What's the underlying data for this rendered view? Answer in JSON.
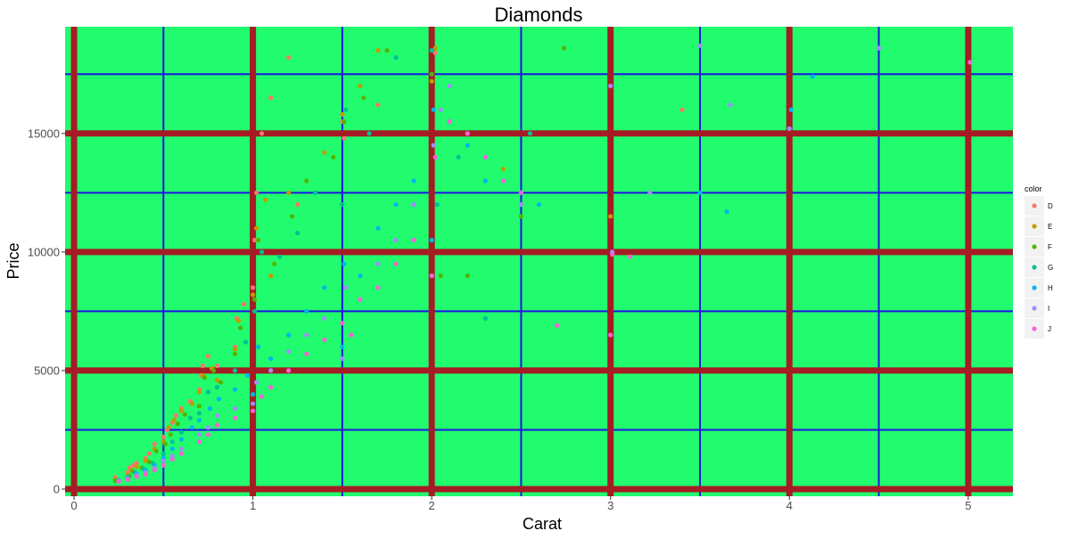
{
  "chart_data": {
    "type": "scatter",
    "title": "Diamonds",
    "xlabel": "Carat",
    "ylabel": "Price",
    "xlim": [
      -0.05,
      5.25
    ],
    "ylim": [
      -300,
      19500
    ],
    "x_ticks": [
      0,
      1,
      2,
      3,
      4,
      5
    ],
    "x_tick_labels": [
      "0",
      "1",
      "2",
      "3",
      "4",
      "5"
    ],
    "y_ticks": [
      0,
      5000,
      10000,
      15000
    ],
    "y_tick_labels": [
      "0",
      "5000",
      "10000",
      "15000"
    ],
    "x_minor_ticks": [
      0.5,
      1.5,
      2.5,
      3.5,
      4.5
    ],
    "y_minor_ticks": [
      2500,
      7500,
      12500,
      17500
    ],
    "grid": true,
    "panel_background": "#20FC6E",
    "major_grid_color": "#A51C24",
    "minor_grid_color": "#1E14E6",
    "legend": {
      "title": "color",
      "position": "right",
      "entries": [
        "D",
        "E",
        "F",
        "G",
        "H",
        "I",
        "J"
      ]
    },
    "series": [
      {
        "name": "D",
        "color": "#F8766D",
        "x": [
          0.23,
          0.3,
          0.31,
          0.33,
          0.35,
          0.4,
          0.42,
          0.45,
          0.5,
          0.52,
          0.55,
          0.57,
          0.6,
          0.65,
          0.7,
          0.71,
          0.72,
          0.75,
          0.8,
          0.9,
          0.91,
          0.95,
          1.0,
          1.01,
          1.02,
          1.05,
          1.1,
          1.2,
          1.25,
          1.5,
          1.51,
          1.7,
          2.0,
          2.02,
          3.4
        ],
        "y": [
          500,
          700,
          900,
          1000,
          1100,
          1300,
          1500,
          1900,
          2200,
          2500,
          2800,
          3100,
          3400,
          3700,
          4200,
          4800,
          5200,
          5600,
          5200,
          6000,
          7200,
          7800,
          8500,
          10500,
          12500,
          15000,
          16500,
          18200,
          12000,
          15500,
          14800,
          16200,
          17500,
          18400,
          16000
        ]
      },
      {
        "name": "E",
        "color": "#C49A00",
        "x": [
          0.23,
          0.3,
          0.32,
          0.35,
          0.4,
          0.45,
          0.5,
          0.53,
          0.56,
          0.6,
          0.66,
          0.7,
          0.72,
          0.77,
          0.8,
          0.9,
          0.92,
          1.0,
          1.02,
          1.07,
          1.1,
          1.2,
          1.4,
          1.5,
          1.6,
          1.7,
          2.0,
          2.02,
          2.4,
          3.0
        ],
        "y": [
          400,
          600,
          800,
          950,
          1200,
          1700,
          2000,
          2600,
          2900,
          3300,
          3600,
          4100,
          4800,
          5100,
          4600,
          5900,
          7100,
          8200,
          11000,
          12200,
          9000,
          12500,
          14200,
          15800,
          17000,
          18500,
          17200,
          18600,
          13500,
          11500
        ]
      },
      {
        "name": "F",
        "color": "#53B400",
        "x": [
          0.23,
          0.31,
          0.33,
          0.38,
          0.42,
          0.46,
          0.51,
          0.54,
          0.58,
          0.62,
          0.7,
          0.73,
          0.78,
          0.82,
          0.9,
          0.93,
          1.01,
          1.03,
          1.12,
          1.22,
          1.3,
          1.45,
          1.51,
          1.62,
          1.75,
          2.0,
          2.05,
          2.2,
          2.5,
          2.74
        ],
        "y": [
          350,
          550,
          750,
          900,
          1150,
          1600,
          1900,
          2300,
          2750,
          3150,
          3500,
          4700,
          5000,
          4500,
          5700,
          6800,
          8000,
          10500,
          9500,
          11500,
          13000,
          14000,
          15500,
          16500,
          18500,
          17500,
          9000,
          9000,
          11500,
          18600
        ]
      },
      {
        "name": "G",
        "color": "#00C094",
        "x": [
          0.25,
          0.3,
          0.34,
          0.39,
          0.44,
          0.5,
          0.55,
          0.6,
          0.65,
          0.7,
          0.75,
          0.8,
          0.9,
          0.96,
          1.01,
          1.05,
          1.15,
          1.25,
          1.35,
          1.5,
          1.52,
          1.65,
          1.8,
          2.0,
          2.03,
          2.15,
          2.3,
          2.55
        ],
        "y": [
          380,
          520,
          700,
          850,
          1100,
          1500,
          2000,
          2400,
          3000,
          3200,
          4100,
          4300,
          5000,
          6200,
          7500,
          10000,
          9800,
          10800,
          12500,
          12000,
          16000,
          15000,
          18200,
          18500,
          12000,
          14000,
          7200,
          15000
        ]
      },
      {
        "name": "H",
        "color": "#00B6EB",
        "x": [
          0.25,
          0.3,
          0.35,
          0.4,
          0.45,
          0.5,
          0.55,
          0.6,
          0.66,
          0.7,
          0.76,
          0.81,
          0.9,
          0.97,
          1.0,
          1.03,
          1.1,
          1.2,
          1.3,
          1.4,
          1.5,
          1.51,
          1.6,
          1.7,
          1.8,
          1.9,
          2.0,
          2.01,
          2.1,
          2.2,
          2.3,
          2.5,
          2.6,
          3.5,
          3.65,
          4.01,
          4.13
        ],
        "y": [
          360,
          480,
          650,
          800,
          1000,
          1300,
          1700,
          2100,
          2600,
          2900,
          3400,
          3800,
          4200,
          4800,
          4000,
          6000,
          5500,
          6500,
          7500,
          8500,
          6000,
          9500,
          9000,
          11000,
          12000,
          13000,
          10500,
          16000,
          15500,
          14500,
          13000,
          12500,
          12000,
          12500,
          11700,
          16000,
          17400
        ]
      },
      {
        "name": "I",
        "color": "#A58AFF",
        "x": [
          0.25,
          0.3,
          0.35,
          0.4,
          0.45,
          0.5,
          0.55,
          0.6,
          0.7,
          0.75,
          0.8,
          0.9,
          1.0,
          1.02,
          1.1,
          1.2,
          1.3,
          1.4,
          1.5,
          1.52,
          1.6,
          1.7,
          1.8,
          1.9,
          2.0,
          2.01,
          2.05,
          2.1,
          2.2,
          2.3,
          2.4,
          2.5,
          3.0,
          3.01,
          3.22,
          3.5,
          3.67,
          4.0,
          4.5
        ],
        "y": [
          340,
          430,
          580,
          700,
          900,
          1200,
          1400,
          1700,
          2300,
          2600,
          3100,
          3400,
          3600,
          4500,
          5000,
          5800,
          6500,
          7200,
          5500,
          8500,
          8000,
          9500,
          10500,
          12000,
          9000,
          14500,
          16000,
          17000,
          15000,
          14000,
          13000,
          12000,
          17000,
          10000,
          12500,
          18700,
          16200,
          15200,
          18600
        ]
      },
      {
        "name": "J",
        "color": "#FB61D7",
        "x": [
          0.25,
          0.3,
          0.35,
          0.4,
          0.45,
          0.5,
          0.55,
          0.6,
          0.7,
          0.75,
          0.8,
          0.9,
          1.0,
          1.05,
          1.1,
          1.2,
          1.3,
          1.4,
          1.5,
          1.55,
          1.6,
          1.7,
          1.8,
          1.9,
          2.0,
          2.02,
          2.1,
          2.2,
          2.3,
          2.4,
          2.5,
          2.7,
          3.0,
          3.01,
          3.11,
          5.01
        ],
        "y": [
          320,
          400,
          520,
          620,
          800,
          1000,
          1250,
          1500,
          2000,
          2300,
          2700,
          3000,
          3300,
          3900,
          4300,
          5000,
          5700,
          6300,
          7000,
          6500,
          8000,
          8500,
          9500,
          10500,
          9000,
          14000,
          15500,
          15000,
          14000,
          13000,
          12500,
          6900,
          6500,
          9900,
          9800,
          18000
        ]
      }
    ]
  }
}
